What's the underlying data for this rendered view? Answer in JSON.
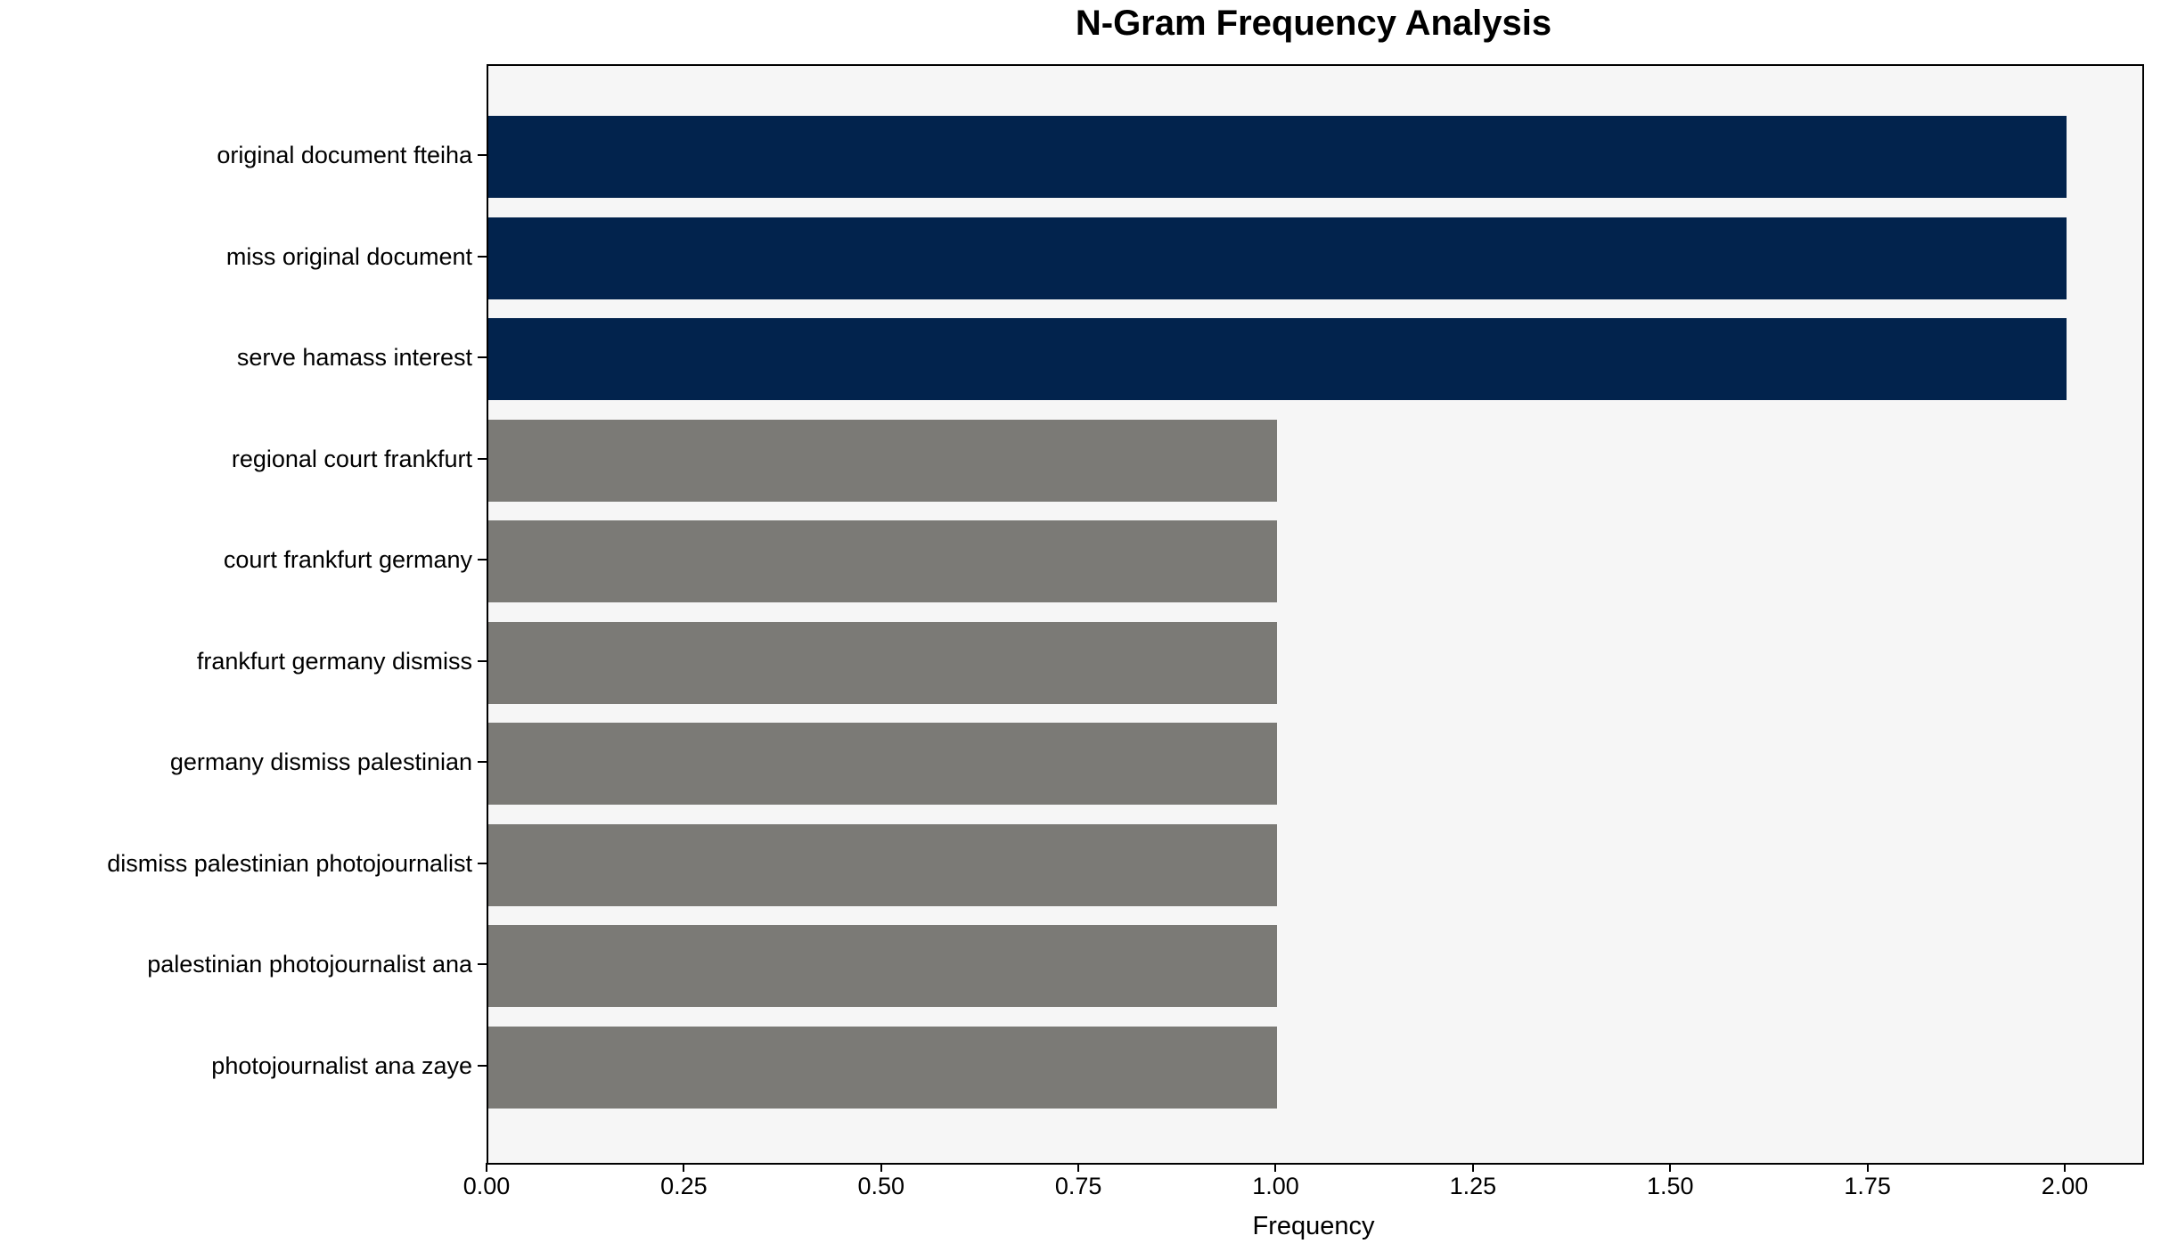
{
  "chart_data": {
    "type": "bar",
    "orientation": "horizontal",
    "title": "N-Gram Frequency Analysis",
    "xlabel": "Frequency",
    "ylabel": "",
    "categories": [
      "original document fteiha",
      "miss original document",
      "serve hamass interest",
      "regional court frankfurt",
      "court frankfurt germany",
      "frankfurt germany dismiss",
      "germany dismiss palestinian",
      "dismiss palestinian photojournalist",
      "palestinian photojournalist ana",
      "photojournalist ana zaye"
    ],
    "values": [
      2,
      2,
      2,
      1,
      1,
      1,
      1,
      1,
      1,
      1
    ],
    "bar_colors": [
      "#02234d",
      "#02234d",
      "#02234d",
      "#7b7a76",
      "#7b7a76",
      "#7b7a76",
      "#7b7a76",
      "#7b7a76",
      "#7b7a76",
      "#7b7a76"
    ],
    "xlim": [
      0,
      2.096
    ],
    "xticks": [
      0.0,
      0.25,
      0.5,
      0.75,
      1.0,
      1.25,
      1.5,
      1.75,
      2.0
    ],
    "xtick_labels": [
      "0.00",
      "0.25",
      "0.50",
      "0.75",
      "1.00",
      "1.25",
      "1.50",
      "1.75",
      "2.00"
    ],
    "grid": false,
    "legend": null,
    "plot_background": "#f6f6f6",
    "figure_background": "#ffffff"
  }
}
